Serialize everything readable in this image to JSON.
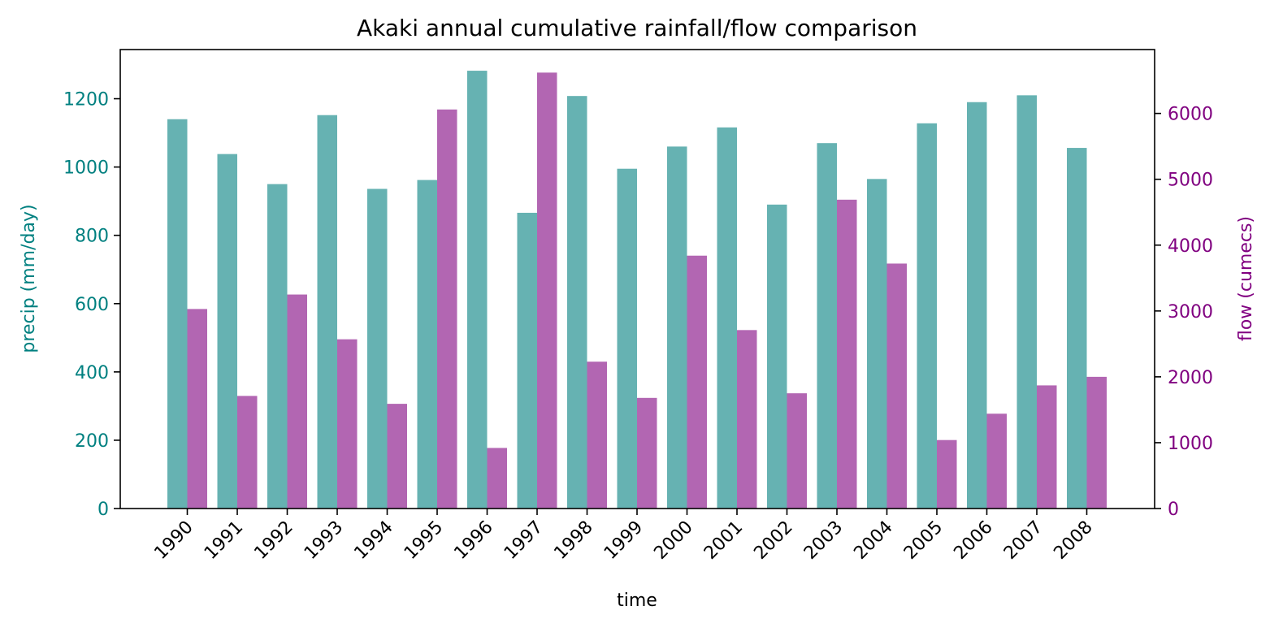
{
  "chart_data": {
    "type": "bar",
    "title": "Akaki annual cumulative rainfall/flow comparison",
    "xlabel": "time",
    "categories": [
      "1990",
      "1991",
      "1992",
      "1993",
      "1994",
      "1995",
      "1996",
      "1997",
      "1998",
      "1999",
      "2000",
      "2001",
      "2002",
      "2003",
      "2004",
      "2005",
      "2006",
      "2007",
      "2008"
    ],
    "left_axis": {
      "label": "precip (mm/day)",
      "color": "#008080",
      "ylim": [
        0,
        1344
      ],
      "ticks": [
        0,
        200,
        400,
        600,
        800,
        1000,
        1200
      ]
    },
    "right_axis": {
      "label": "flow (cumecs)",
      "color": "#800080",
      "ylim": [
        0,
        6970
      ],
      "ticks": [
        0,
        1000,
        2000,
        3000,
        4000,
        5000,
        6000
      ]
    },
    "series": [
      {
        "name": "precip",
        "axis": "left",
        "color": "#66b2b2",
        "values": [
          1140,
          1038,
          950,
          1152,
          936,
          962,
          1282,
          866,
          1208,
          995,
          1060,
          1116,
          890,
          1070,
          965,
          1128,
          1190,
          1210,
          1056
        ]
      },
      {
        "name": "flow",
        "axis": "right",
        "color": "#b266b2",
        "values": [
          3030,
          1710,
          3250,
          2570,
          1590,
          6060,
          920,
          6620,
          2230,
          1680,
          3840,
          2710,
          1750,
          4690,
          3720,
          1040,
          1440,
          1870,
          2000
        ]
      }
    ]
  }
}
